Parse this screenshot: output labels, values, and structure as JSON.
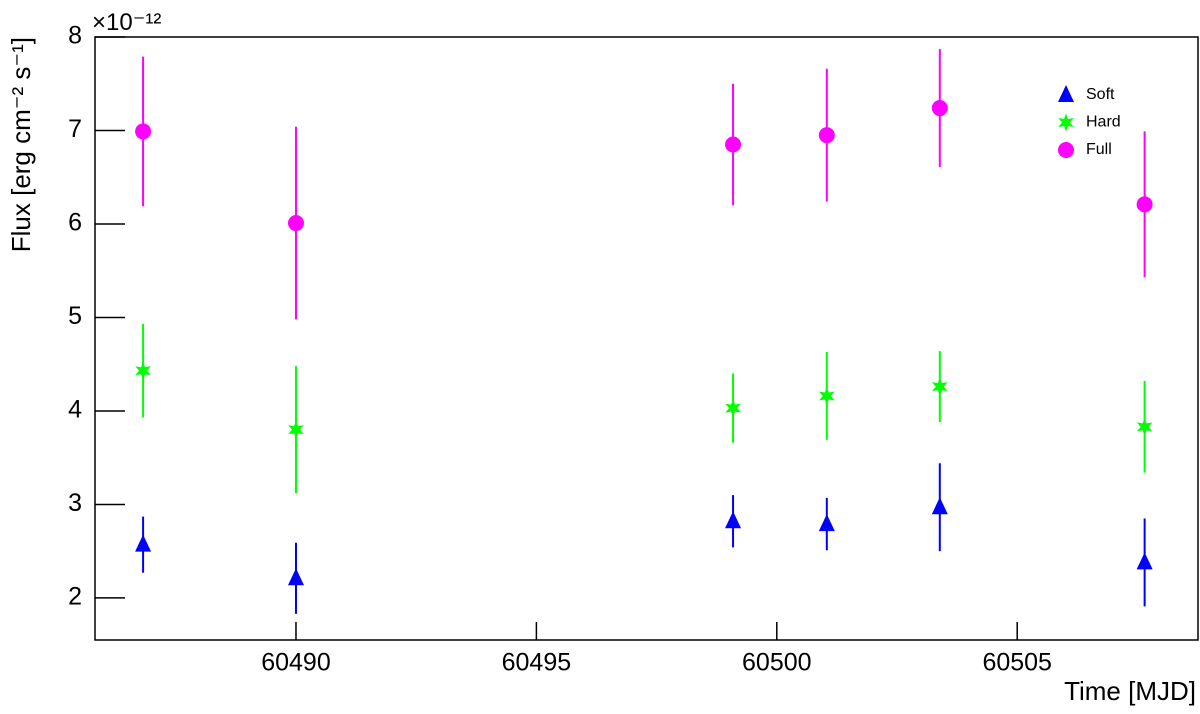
{
  "chart_data": {
    "type": "scatter",
    "xlabel": "Time [MJD]",
    "ylabel": "Flux [erg cm⁻² s⁻¹]",
    "y_multiplier": "×10⁻¹²",
    "xlim": [
      60485.82,
      60508.76
    ],
    "ylim": [
      1.55,
      8
    ],
    "xticks": [
      60490,
      60495,
      60500,
      60505
    ],
    "yticks": [
      2,
      3,
      4,
      5,
      6,
      7,
      8
    ],
    "legend": "upper right",
    "series": [
      {
        "name": "Soft",
        "color": "#0000ff",
        "marker": "triangle",
        "x": [
          60486.82,
          60490.0,
          60499.09,
          60501.04,
          60503.39,
          60507.65
        ],
        "values": [
          2.57,
          2.21,
          2.82,
          2.79,
          2.97,
          2.38
        ],
        "errors": [
          0.3,
          0.38,
          0.28,
          0.28,
          0.47,
          0.47
        ]
      },
      {
        "name": "Hard",
        "color": "#00ff00",
        "marker": "star",
        "x": [
          60486.82,
          60490.0,
          60499.09,
          60501.04,
          60503.39,
          60507.65
        ],
        "values": [
          4.43,
          3.8,
          4.03,
          4.16,
          4.26,
          3.83
        ],
        "errors": [
          0.5,
          0.68,
          0.37,
          0.47,
          0.38,
          0.49
        ]
      },
      {
        "name": "Full",
        "color": "#ff00ff",
        "marker": "circle",
        "x": [
          60486.82,
          60490.0,
          60499.09,
          60501.04,
          60503.39,
          60507.65
        ],
        "values": [
          6.99,
          6.01,
          6.85,
          6.95,
          7.24,
          6.21
        ],
        "errors": [
          0.8,
          1.03,
          0.65,
          0.71,
          0.63,
          0.78
        ]
      }
    ]
  }
}
